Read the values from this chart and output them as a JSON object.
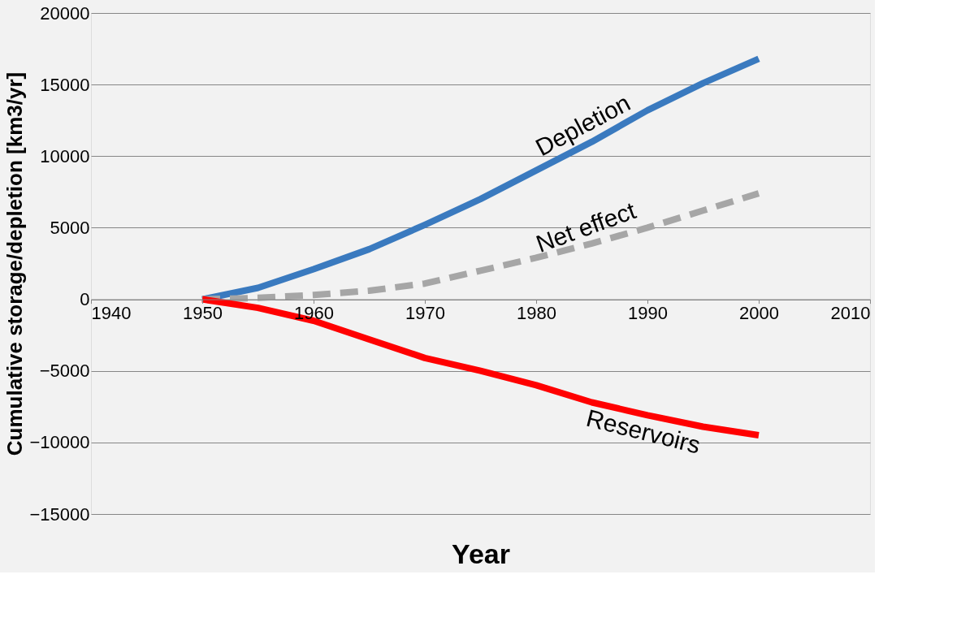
{
  "chart_data": {
    "type": "line",
    "xlabel": "Year",
    "ylabel": "Cumulative storage/depletion [km3/yr]",
    "x": [
      1950,
      1955,
      1960,
      1965,
      1970,
      1975,
      1980,
      1985,
      1990,
      1995,
      2000
    ],
    "xlim": [
      1940,
      2010
    ],
    "xticks": [
      1940,
      1950,
      1960,
      1970,
      1980,
      1990,
      2000,
      2010
    ],
    "ylim": [
      -15000,
      20000
    ],
    "yticks": [
      -15000,
      -10000,
      -5000,
      0,
      5000,
      10000,
      15000,
      20000
    ],
    "grid": "y",
    "legend": false,
    "series": [
      {
        "name": "Depletion",
        "color": "#3a7abf",
        "line_style": "solid",
        "values": [
          0,
          800,
          2100,
          3500,
          5200,
          7000,
          9000,
          11000,
          13200,
          15100,
          16800
        ]
      },
      {
        "name": "Net effect",
        "color": "#a6a6a6",
        "line_style": "dashed",
        "values": [
          0,
          100,
          300,
          600,
          1100,
          2000,
          2900,
          3900,
          5000,
          6200,
          7400
        ]
      },
      {
        "name": "Reservoirs",
        "color": "#ff0000",
        "line_style": "solid",
        "values": [
          0,
          -600,
          -1500,
          -2800,
          -4100,
          -5000,
          -6000,
          -7200,
          -8100,
          -8900,
          -9500
        ]
      }
    ]
  }
}
